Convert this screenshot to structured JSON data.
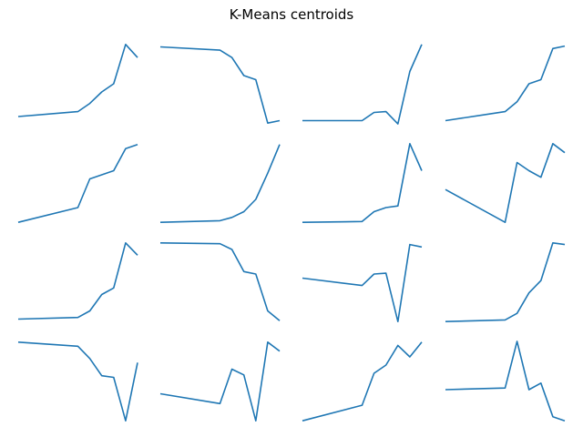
{
  "chart_data": {
    "type": "line",
    "title": "K-Means centroids",
    "grid": false,
    "axes_visible": false,
    "layout": {
      "rows": 4,
      "cols": 4
    },
    "line_color": "#1f77b4",
    "x": [
      0,
      5,
      6,
      7,
      8,
      9,
      10
    ],
    "subplots": [
      {
        "values": [
          0.1,
          0.16,
          0.26,
          0.4,
          0.5,
          0.98,
          0.82
        ]
      },
      {
        "values": [
          0.95,
          0.91,
          0.82,
          0.6,
          0.55,
          0.02,
          0.05
        ]
      },
      {
        "values": [
          0.05,
          0.05,
          0.15,
          0.16,
          0.01,
          0.65,
          0.98
        ]
      },
      {
        "values": [
          0.05,
          0.16,
          0.28,
          0.5,
          0.55,
          0.93,
          0.96
        ]
      },
      {
        "values": [
          0.02,
          0.2,
          0.55,
          0.6,
          0.65,
          0.92,
          0.97
        ]
      },
      {
        "values": [
          0.02,
          0.04,
          0.08,
          0.15,
          0.3,
          0.62,
          0.97
        ]
      },
      {
        "values": [
          0.02,
          0.03,
          0.15,
          0.2,
          0.22,
          0.98,
          0.65
        ]
      },
      {
        "values": [
          0.42,
          0.02,
          0.75,
          0.65,
          0.57,
          0.98,
          0.87
        ]
      },
      {
        "values": [
          0.05,
          0.07,
          0.15,
          0.35,
          0.43,
          0.98,
          0.83
        ]
      },
      {
        "values": [
          0.98,
          0.97,
          0.9,
          0.63,
          0.6,
          0.15,
          0.03
        ]
      },
      {
        "values": [
          0.55,
          0.46,
          0.6,
          0.61,
          0.02,
          0.96,
          0.93
        ]
      },
      {
        "values": [
          0.02,
          0.04,
          0.12,
          0.37,
          0.52,
          0.98,
          0.96
        ]
      },
      {
        "values": [
          0.98,
          0.93,
          0.78,
          0.57,
          0.55,
          0.02,
          0.73
        ]
      },
      {
        "values": [
          0.35,
          0.23,
          0.65,
          0.58,
          0.02,
          0.98,
          0.87
        ]
      },
      {
        "values": [
          0.02,
          0.21,
          0.6,
          0.7,
          0.94,
          0.8,
          0.98
        ]
      },
      {
        "values": [
          0.4,
          0.42,
          0.99,
          0.4,
          0.48,
          0.07,
          0.02
        ]
      }
    ]
  }
}
